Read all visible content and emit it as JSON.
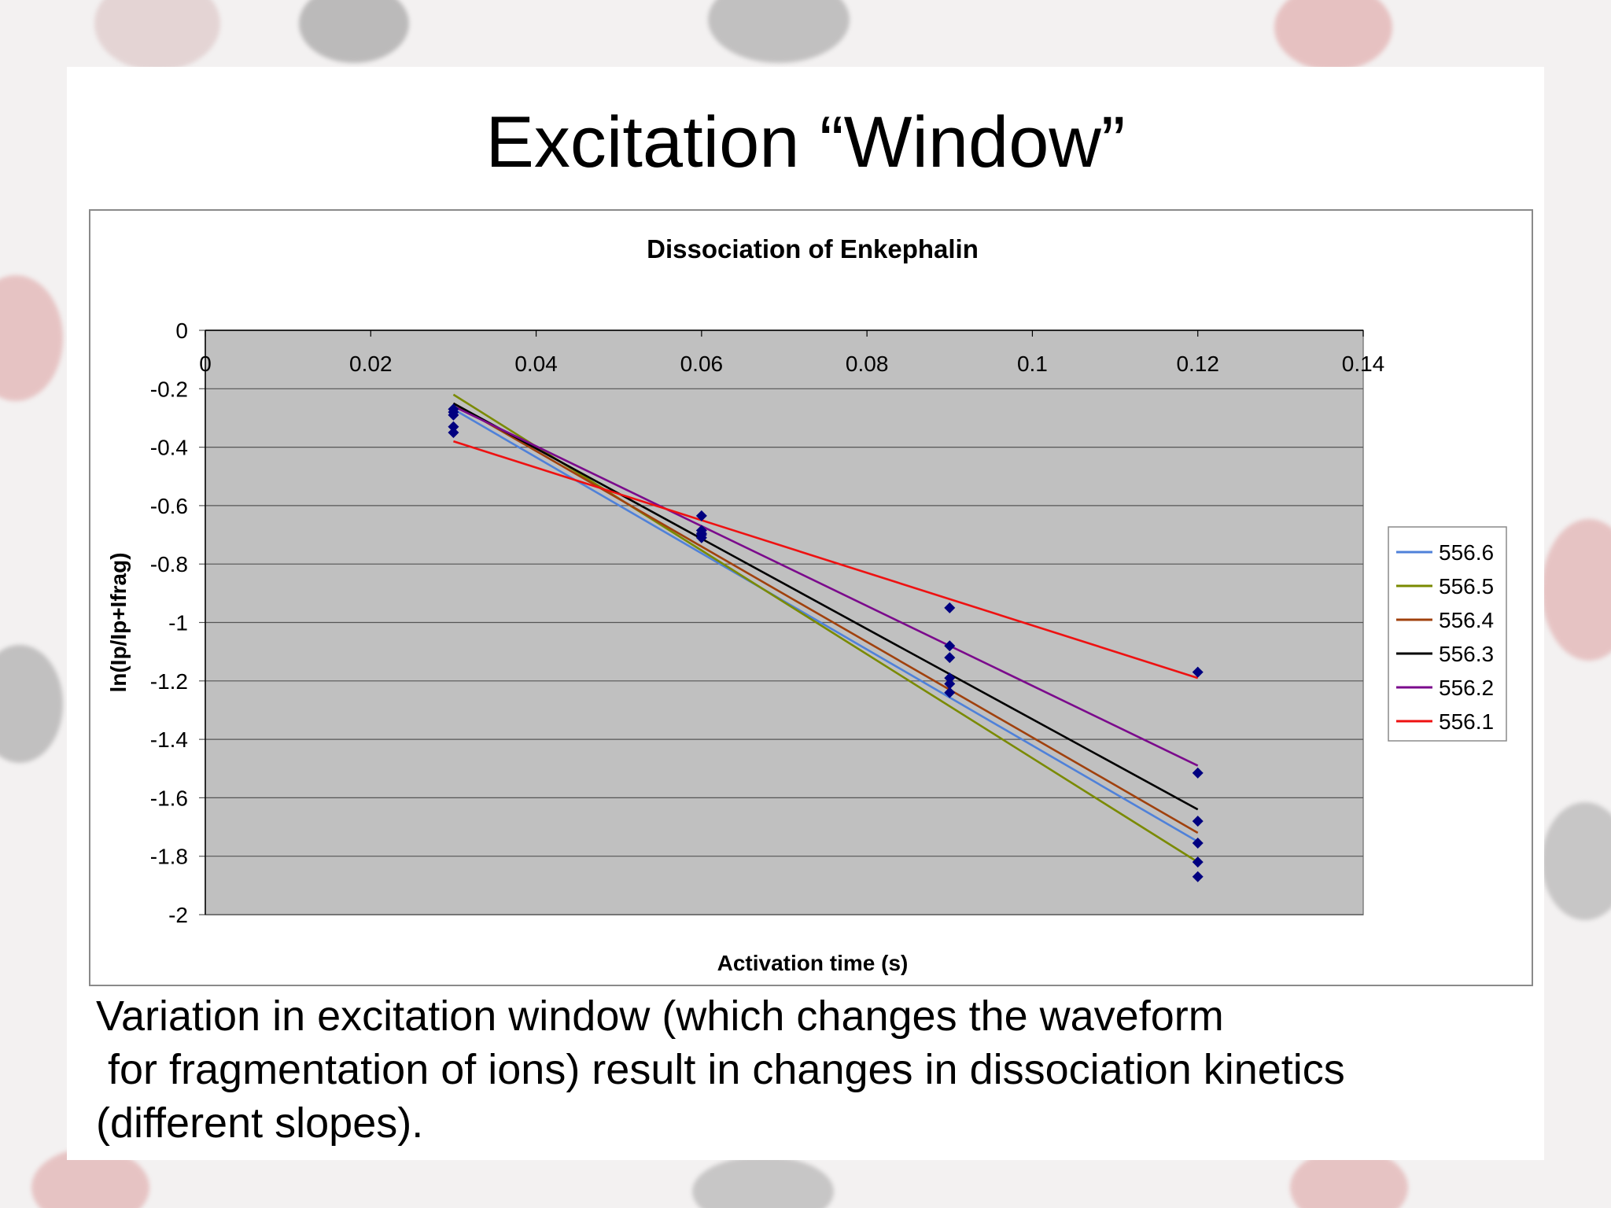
{
  "slide": {
    "title": "Excitation “Window”",
    "caption_lines": [
      "Variation in excitation window (which changes the waveform",
      " for fragmentation of ions) result in changes in dissociation kinetics",
      "(different slopes)."
    ]
  },
  "chart_data": {
    "type": "scatter",
    "title": "Dissociation of Enkephalin",
    "xlabel": "Activation time (s)",
    "ylabel": "ln(Ip/Ip+Ifrag)",
    "xlim": [
      0,
      0.14
    ],
    "ylim": [
      -2,
      0
    ],
    "x_ticks": [
      "0",
      "0.02",
      "0.04",
      "0.06",
      "0.08",
      "0.1",
      "0.12",
      "0.14"
    ],
    "y_ticks": [
      "0",
      "-0.2",
      "-0.4",
      "-0.6",
      "-0.8",
      "-1",
      "-1.2",
      "-1.4",
      "-1.6",
      "-1.8",
      "-2"
    ],
    "x_tick_values": [
      0,
      0.02,
      0.04,
      0.06,
      0.08,
      0.1,
      0.12,
      0.14
    ],
    "y_tick_values": [
      0,
      -0.2,
      -0.4,
      -0.6,
      -0.8,
      -1,
      -1.2,
      -1.4,
      -1.6,
      -1.8,
      -2
    ],
    "grid": "horizontal",
    "plot_background": "#c0c0c0",
    "marker_color": "#000080",
    "legend_position": "right",
    "points": [
      {
        "x": 0.03,
        "y": -0.27
      },
      {
        "x": 0.03,
        "y": -0.28
      },
      {
        "x": 0.03,
        "y": -0.29
      },
      {
        "x": 0.03,
        "y": -0.33
      },
      {
        "x": 0.03,
        "y": -0.35
      },
      {
        "x": 0.06,
        "y": -0.635
      },
      {
        "x": 0.06,
        "y": -0.685
      },
      {
        "x": 0.06,
        "y": -0.695
      },
      {
        "x": 0.06,
        "y": -0.7
      },
      {
        "x": 0.06,
        "y": -0.71
      },
      {
        "x": 0.09,
        "y": -0.95
      },
      {
        "x": 0.09,
        "y": -1.08
      },
      {
        "x": 0.09,
        "y": -1.12
      },
      {
        "x": 0.09,
        "y": -1.19
      },
      {
        "x": 0.09,
        "y": -1.21
      },
      {
        "x": 0.09,
        "y": -1.24
      },
      {
        "x": 0.12,
        "y": -1.17
      },
      {
        "x": 0.12,
        "y": -1.515
      },
      {
        "x": 0.12,
        "y": -1.68
      },
      {
        "x": 0.12,
        "y": -1.755
      },
      {
        "x": 0.12,
        "y": -1.82
      },
      {
        "x": 0.12,
        "y": -1.87
      }
    ],
    "series": [
      {
        "name": "556.6",
        "color": "#4f81d9",
        "x": [
          0.03,
          0.12
        ],
        "y": [
          -0.27,
          -1.75
        ]
      },
      {
        "name": "556.5",
        "color": "#7a8a00",
        "x": [
          0.03,
          0.12
        ],
        "y": [
          -0.22,
          -1.82
        ]
      },
      {
        "name": "556.4",
        "color": "#a0410d",
        "x": [
          0.03,
          0.12
        ],
        "y": [
          -0.25,
          -1.72
        ]
      },
      {
        "name": "556.3",
        "color": "#000000",
        "x": [
          0.03,
          0.12
        ],
        "y": [
          -0.25,
          -1.64
        ]
      },
      {
        "name": "556.2",
        "color": "#7b0a8c",
        "x": [
          0.03,
          0.12
        ],
        "y": [
          -0.26,
          -1.49
        ]
      },
      {
        "name": "556.1",
        "color": "#ee1111",
        "x": [
          0.03,
          0.12
        ],
        "y": [
          -0.38,
          -1.19
        ]
      }
    ]
  }
}
